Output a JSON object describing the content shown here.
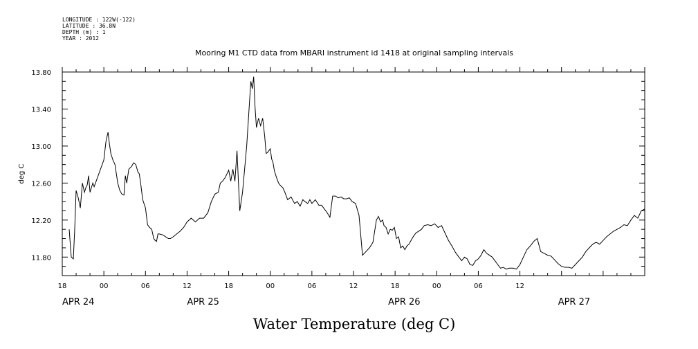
{
  "meta_lines": [
    "LONGITUDE : 122W(-122)",
    "LATITUDE : 36.8N",
    "DEPTH (m) : 1",
    "YEAR : 2012"
  ],
  "chart_data": {
    "type": "line",
    "title": "Mooring M1 CTD data from MBARI instrument id 1418 at original sampling intervals",
    "ylabel": "deg C",
    "xlabel": "Water Temperature (deg C)",
    "ylim": [
      11.6,
      13.8
    ],
    "xlim_hours": [
      18,
      102
    ],
    "y_ticks": [
      {
        "value": 11.8,
        "label": "11.80"
      },
      {
        "value": 12.2,
        "label": "12.20"
      },
      {
        "value": 12.6,
        "label": "12.60"
      },
      {
        "value": 13.0,
        "label": "13.00"
      },
      {
        "value": 13.4,
        "label": "13.40"
      },
      {
        "value": 13.8,
        "label": "13.80"
      }
    ],
    "x_ticks": [
      {
        "hour": 18,
        "label": "18"
      },
      {
        "hour": 24,
        "label": "00"
      },
      {
        "hour": 30,
        "label": "06"
      },
      {
        "hour": 36,
        "label": "12"
      },
      {
        "hour": 42,
        "label": "18"
      },
      {
        "hour": 48,
        "label": "00"
      },
      {
        "hour": 54,
        "label": "06"
      },
      {
        "hour": 60,
        "label": "12"
      },
      {
        "hour": 66,
        "label": "18"
      },
      {
        "hour": 72,
        "label": "00"
      },
      {
        "hour": 78,
        "label": "06"
      },
      {
        "hour": 84,
        "label": "12"
      }
    ],
    "date_labels": [
      {
        "hour": 18,
        "label": "APR 24"
      },
      {
        "hour": 36,
        "label": "APR 25"
      },
      {
        "hour": 65,
        "label": "APR 26"
      },
      {
        "hour": 89.5,
        "label": "APR 27"
      }
    ],
    "grid": false,
    "series": [
      {
        "color": "#000000",
        "x": [
          19.0,
          19.3,
          19.6,
          19.8,
          20.0,
          20.3,
          20.6,
          20.9,
          21.2,
          21.4,
          21.6,
          21.8,
          22.0,
          22.2,
          22.4,
          22.6,
          24.0,
          24.3,
          24.6,
          24.8,
          25.0,
          25.3,
          25.6,
          26.0,
          26.3,
          26.6,
          26.9,
          27.1,
          27.3,
          27.6,
          28.0,
          28.3,
          28.6,
          28.9,
          29.1,
          29.3,
          29.6,
          30.0,
          30.3,
          30.6,
          30.9,
          31.2,
          31.4,
          31.6,
          31.8,
          32.0,
          32.5,
          32.9,
          33.3,
          33.6,
          34.0,
          34.5,
          35.0,
          35.5,
          36.0,
          36.6,
          37.2,
          37.8,
          38.4,
          39.0,
          39.5,
          40.0,
          40.5,
          40.8,
          41.1,
          41.5,
          42.0,
          42.3,
          42.6,
          42.9,
          43.2,
          43.6,
          44.0,
          44.3,
          44.6,
          44.9,
          45.2,
          45.4,
          45.6,
          45.8,
          46.0,
          46.3,
          46.6,
          46.9,
          47.2,
          47.4,
          47.6,
          47.8,
          48.0,
          48.2,
          48.4,
          48.6,
          48.9,
          49.2,
          49.5,
          49.8,
          50.1,
          50.5,
          51.0,
          51.5,
          51.9,
          52.3,
          52.7,
          53.0,
          53.4,
          53.7,
          54.0,
          54.5,
          55.0,
          55.4,
          55.8,
          56.2,
          56.6,
          57.0,
          57.4,
          57.8,
          58.2,
          58.6,
          59.0,
          59.4,
          59.8,
          60.3,
          60.8,
          61.3,
          61.8,
          62.3,
          62.8,
          63.3,
          63.6,
          63.9,
          64.2,
          64.4,
          64.7,
          65.0,
          65.3,
          65.6,
          65.9,
          66.2,
          66.5,
          66.8,
          67.1,
          67.4,
          67.7,
          68.0,
          68.3,
          68.6,
          69.0,
          69.4,
          69.8,
          70.2,
          70.7,
          71.2,
          71.7,
          72.2,
          72.7,
          73.2,
          73.7,
          74.2,
          74.7,
          75.2,
          75.6,
          76.0,
          76.4,
          76.8,
          77.2,
          77.6,
          78.0,
          78.4,
          78.8,
          79.2,
          79.6,
          80.0,
          80.4,
          80.8,
          81.2,
          81.6,
          82.0,
          82.5,
          83.0,
          83.5,
          84.0,
          84.5,
          85.0,
          85.5,
          86.0,
          86.5,
          87.0,
          87.5,
          88.0,
          88.5,
          89.0,
          89.5,
          90.0,
          90.5,
          91.0,
          91.5,
          92.0,
          92.5,
          93.0,
          93.5,
          94.0,
          94.5,
          95.0,
          95.5,
          96.0,
          96.5,
          97.0,
          97.5,
          98.0,
          98.5,
          99.0,
          99.5,
          100.0,
          100.5,
          101.0,
          101.5,
          102.0
        ],
        "y": [
          12.1,
          11.8,
          11.78,
          12.1,
          12.52,
          12.44,
          12.33,
          12.6,
          12.5,
          12.55,
          12.58,
          12.68,
          12.5,
          12.55,
          12.6,
          12.56,
          12.85,
          13.05,
          13.15,
          13.02,
          12.92,
          12.85,
          12.8,
          12.6,
          12.52,
          12.48,
          12.47,
          12.68,
          12.6,
          12.75,
          12.78,
          12.82,
          12.8,
          12.72,
          12.7,
          12.6,
          12.42,
          12.33,
          12.15,
          12.12,
          12.1,
          12.0,
          11.98,
          11.97,
          12.05,
          12.05,
          12.04,
          12.02,
          12.0,
          12.0,
          12.02,
          12.05,
          12.08,
          12.12,
          12.18,
          12.22,
          12.18,
          12.22,
          12.22,
          12.28,
          12.4,
          12.48,
          12.5,
          12.6,
          12.62,
          12.66,
          12.74,
          12.62,
          12.75,
          12.62,
          12.95,
          12.3,
          12.5,
          12.75,
          13.0,
          13.35,
          13.7,
          13.62,
          13.75,
          13.42,
          13.2,
          13.3,
          13.22,
          13.3,
          13.1,
          12.92,
          12.93,
          12.95,
          12.97,
          12.86,
          12.82,
          12.73,
          12.66,
          12.6,
          12.57,
          12.55,
          12.5,
          12.42,
          12.45,
          12.38,
          12.4,
          12.35,
          12.42,
          12.4,
          12.38,
          12.42,
          12.38,
          12.42,
          12.36,
          12.36,
          12.32,
          12.28,
          12.23,
          12.46,
          12.46,
          12.44,
          12.45,
          12.43,
          12.43,
          12.44,
          12.4,
          12.38,
          12.25,
          11.82,
          11.86,
          11.9,
          11.96,
          12.2,
          12.24,
          12.18,
          12.2,
          12.14,
          12.12,
          12.05,
          12.1,
          12.09,
          12.12,
          12.0,
          12.02,
          11.9,
          11.92,
          11.88,
          11.92,
          11.94,
          11.98,
          12.02,
          12.06,
          12.08,
          12.1,
          12.14,
          12.15,
          12.14,
          12.16,
          12.12,
          12.14,
          12.06,
          11.98,
          11.92,
          11.85,
          11.8,
          11.76,
          11.8,
          11.78,
          11.72,
          11.71,
          11.76,
          11.78,
          11.82,
          11.88,
          11.84,
          11.82,
          11.8,
          11.76,
          11.72,
          11.68,
          11.69,
          11.67,
          11.68,
          11.68,
          11.67,
          11.72,
          11.8,
          11.88,
          11.92,
          11.97,
          12.0,
          11.86,
          11.84,
          11.82,
          11.81,
          11.77,
          11.73,
          11.7,
          11.69,
          11.69,
          11.68,
          11.72,
          11.76,
          11.8,
          11.86,
          11.9,
          11.94,
          11.96,
          11.94,
          11.98,
          12.02,
          12.05,
          12.08,
          12.1,
          12.12,
          12.15,
          12.14,
          12.2,
          12.25,
          12.22,
          12.3,
          12.32
        ]
      }
    ]
  }
}
